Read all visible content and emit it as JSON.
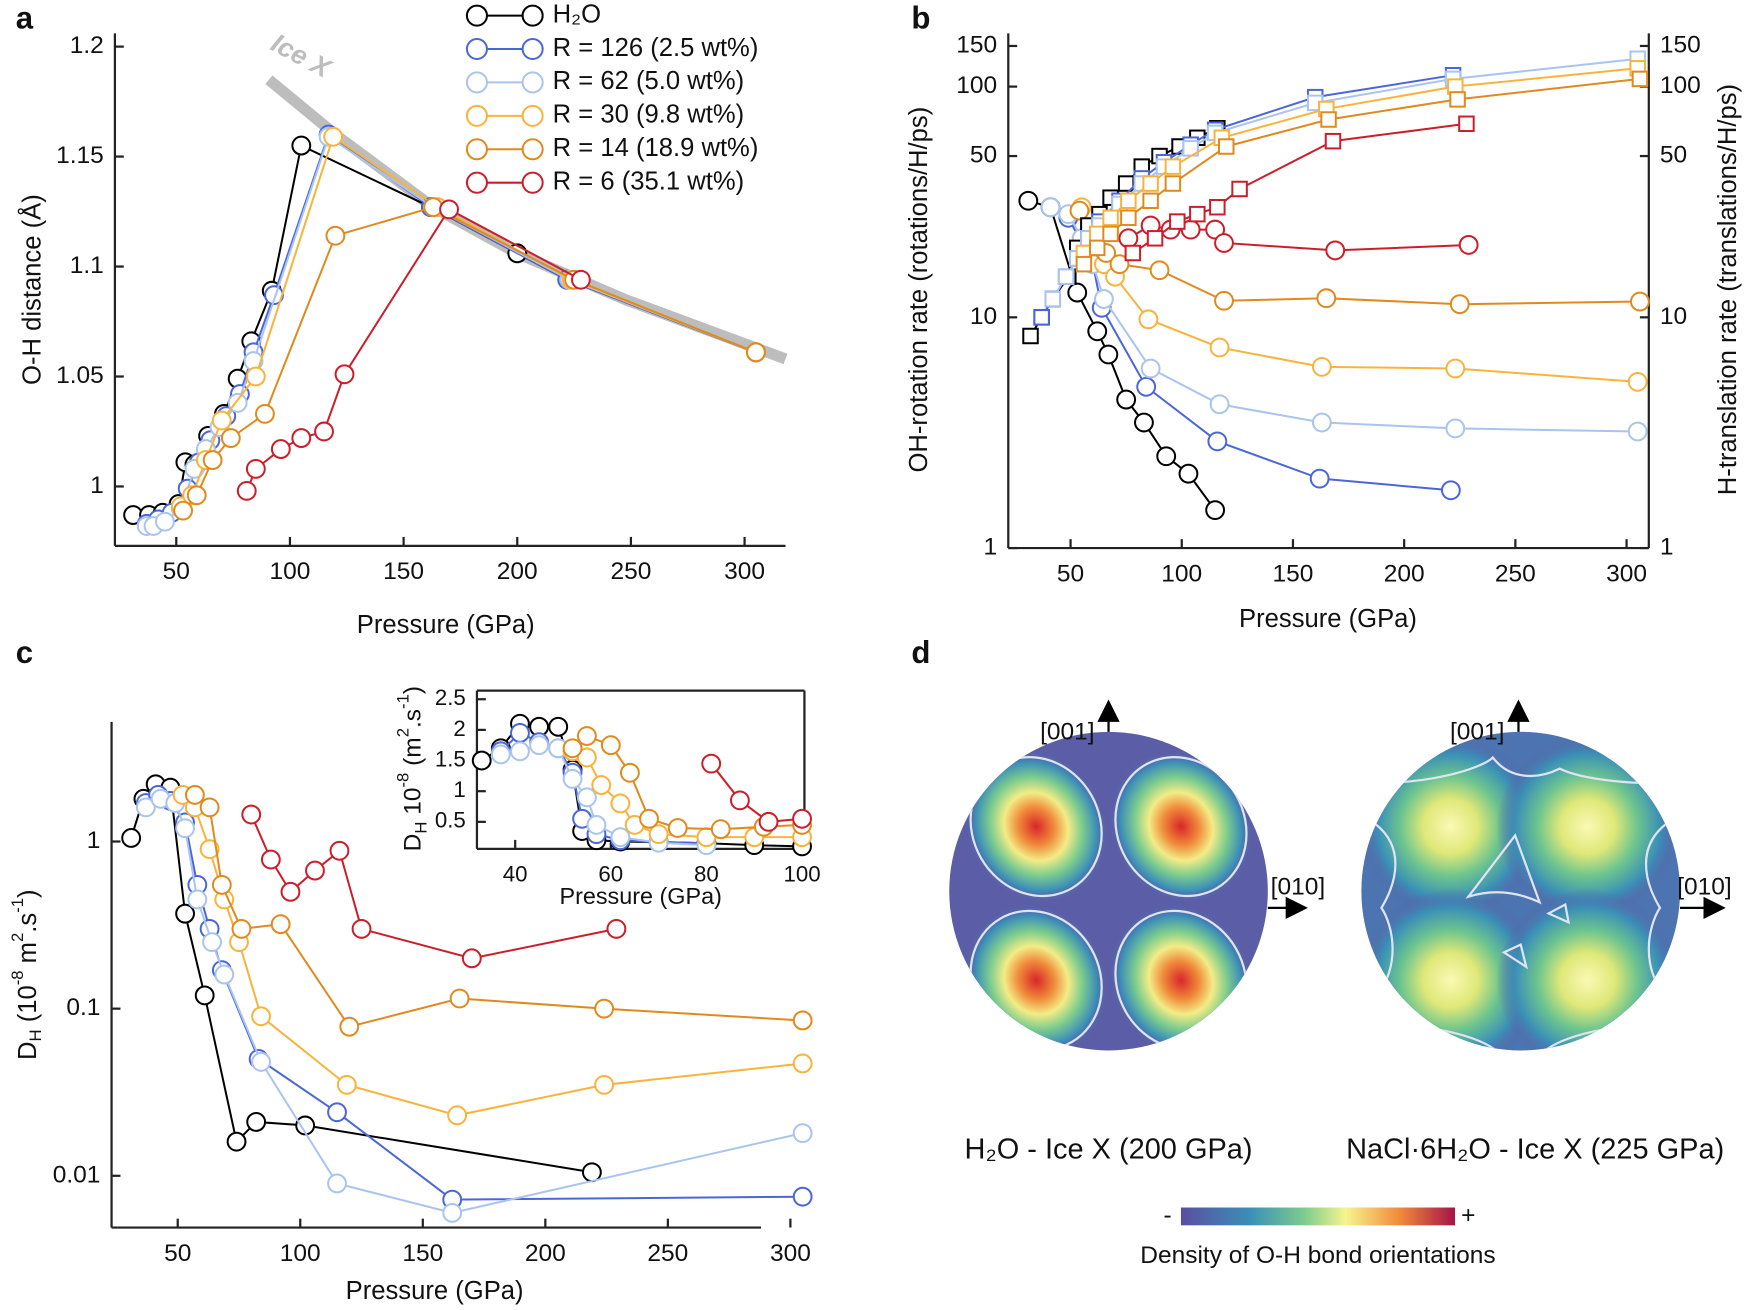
{
  "chart_data": [
    {
      "type": "line",
      "panel": "a",
      "x_label": "Pressure (GPa)",
      "y_label": "O-H distance (Å)",
      "xlim": [
        23,
        318
      ],
      "ylim": [
        0.973,
        1.206
      ],
      "xticks": [
        50,
        100,
        150,
        200,
        250,
        300
      ],
      "yticks": [
        1,
        1.05,
        1.1,
        1.15,
        1.2
      ],
      "legend": "upper center",
      "reference": {
        "label": "Ice X",
        "color": "#bdbdbd",
        "x": [
          90.7,
          120,
          163,
          200,
          247.5,
          318
        ],
        "values": [
          1.185,
          1.16,
          1.127,
          1.106,
          1.085,
          1.058
        ]
      },
      "series": [
        {
          "name": "H₂O",
          "color": "#000000",
          "marker": "circle",
          "x": [
            31,
            38,
            44,
            51,
            54,
            58,
            64,
            71,
            77,
            83,
            92,
            105,
            162,
            200,
            222,
            305
          ],
          "values": [
            0.987,
            0.987,
            0.988,
            0.992,
            1.011,
            1.01,
            1.023,
            1.033,
            1.049,
            1.066,
            1.089,
            1.155,
            1.127,
            1.106,
            1.094,
            1.061
          ]
        },
        {
          "name": "R = 126 (2.5 wt%)",
          "color": "#4a66d9",
          "marker": "circle",
          "x": [
            37,
            42,
            48,
            55,
            60,
            65,
            72,
            78,
            84,
            93,
            117,
            162,
            222,
            305
          ],
          "values": [
            0.983,
            0.985,
            0.988,
            0.999,
            1.011,
            1.021,
            1.032,
            1.042,
            1.061,
            1.087,
            1.16,
            1.127,
            1.094,
            1.061
          ]
        },
        {
          "name": "R = 62 (5.0 wt%)",
          "color": "#a9c4ee",
          "marker": "circle",
          "x": [
            37,
            40,
            45,
            52,
            58,
            63,
            69,
            77,
            84,
            117,
            163,
            223,
            305
          ],
          "values": [
            0.982,
            0.982,
            0.984,
            0.99,
            1.008,
            1.017,
            1.027,
            1.038,
            1.057,
            1.159,
            1.127,
            1.094,
            1.061
          ]
        },
        {
          "name": "R = 30 (9.8 wt%)",
          "color": "#f9b33c",
          "marker": "circle",
          "x": [
            52,
            57,
            63,
            70,
            85,
            119,
            165,
            224,
            305
          ],
          "values": [
            0.991,
            0.996,
            1.012,
            1.03,
            1.05,
            1.159,
            1.127,
            1.094,
            1.061
          ]
        },
        {
          "name": "R = 14 (18.9 wt%)",
          "color": "#e08a1e",
          "marker": "circle",
          "x": [
            53,
            59,
            66,
            74,
            89,
            120,
            163,
            225,
            305
          ],
          "values": [
            0.989,
            0.996,
            1.012,
            1.022,
            1.033,
            1.114,
            1.127,
            1.094,
            1.061
          ]
        },
        {
          "name": "R = 6 (35.1 wt%)",
          "color": "#cc1e2a",
          "marker": "circle",
          "x": [
            81,
            85,
            96,
            105,
            115,
            124,
            170,
            228
          ],
          "values": [
            0.998,
            1.008,
            1.017,
            1.022,
            1.025,
            1.051,
            1.126,
            1.094
          ]
        }
      ]
    },
    {
      "type": "line",
      "panel": "b",
      "x_label": "Pressure (GPa)",
      "y_label": "OH-rotation rate (rotations/H/ps)",
      "y2_label": "H-translation rate (translations/H/ps)",
      "xlim": [
        22,
        310
      ],
      "ylim": [
        1,
        170
      ],
      "y2lim": [
        1,
        170
      ],
      "ylog": true,
      "y2log": true,
      "xticks": [
        50,
        100,
        150,
        200,
        250,
        300
      ],
      "yticks": [
        1,
        10,
        50,
        100,
        150
      ],
      "y2ticks": [
        1,
        10,
        50,
        100,
        150
      ],
      "series": [
        {
          "color": "#000000",
          "marker": "circle",
          "x": [
            31,
            41,
            53,
            62,
            67,
            75,
            83,
            93,
            103,
            115
          ],
          "values": [
            32,
            30,
            12.8,
            8.7,
            6.9,
            4.4,
            3.5,
            2.5,
            2.1,
            1.46
          ]
        },
        {
          "color": "#4a66d9",
          "marker": "circle",
          "x": [
            41,
            49,
            55,
            60,
            64,
            84,
            116,
            162,
            221
          ],
          "values": [
            30,
            27,
            21,
            17,
            11,
            5.0,
            2.9,
            2.0,
            1.78
          ]
        },
        {
          "color": "#a9c4ee",
          "marker": "circle",
          "x": [
            41,
            49,
            55,
            60,
            65,
            86,
            117,
            163,
            223,
            305
          ],
          "values": [
            30,
            28,
            22,
            17,
            12,
            6.0,
            4.2,
            3.5,
            3.3,
            3.2
          ]
        },
        {
          "color": "#f9b33c",
          "marker": "circle",
          "x": [
            55,
            60,
            65,
            70,
            85,
            117,
            163,
            223,
            305
          ],
          "values": [
            30,
            22,
            17,
            15,
            9.8,
            7.4,
            6.1,
            6.0,
            5.25
          ]
        },
        {
          "color": "#e08a1e",
          "marker": "circle",
          "x": [
            54,
            60,
            66,
            72,
            90,
            119,
            165,
            225,
            306
          ],
          "values": [
            29,
            22,
            19,
            17,
            16,
            11.8,
            12.1,
            11.4,
            11.7
          ]
        },
        {
          "color": "#cc1e2a",
          "marker": "circle",
          "x": [
            76,
            86,
            95,
            104,
            115,
            119,
            169,
            229
          ],
          "values": [
            22,
            25,
            24,
            24,
            24,
            21,
            19.5,
            20.6
          ]
        },
        {
          "color": "#000000",
          "marker": "square",
          "axis": "y2",
          "x": [
            32,
            37,
            42,
            49,
            53,
            58,
            63,
            68,
            75,
            82,
            90,
            99,
            107,
            116
          ],
          "values": [
            8.3,
            10,
            12,
            15,
            20,
            25,
            28,
            33,
            38,
            45,
            50,
            55,
            60,
            66
          ]
        },
        {
          "color": "#4a66d9",
          "marker": "square",
          "axis": "y2",
          "x": [
            37,
            42,
            48,
            53,
            58,
            63,
            72,
            82,
            92,
            104,
            115,
            160,
            222
          ],
          "values": [
            10,
            12,
            15,
            18,
            22,
            26,
            32,
            40,
            47,
            56,
            65,
            90,
            112
          ]
        },
        {
          "color": "#a9c4ee",
          "marker": "square",
          "axis": "y2",
          "x": [
            42,
            48,
            53,
            58,
            63,
            72,
            82,
            92,
            104,
            115,
            160,
            222,
            305
          ],
          "values": [
            12,
            15,
            18,
            22,
            25,
            31,
            38,
            45,
            54,
            63,
            85,
            108,
            132
          ]
        },
        {
          "color": "#f9b33c",
          "marker": "square",
          "axis": "y2",
          "x": [
            56,
            62,
            68,
            76,
            86,
            96,
            118,
            165,
            223,
            305
          ],
          "values": [
            19,
            23,
            27,
            32,
            38,
            45,
            60,
            80,
            100,
            120
          ]
        },
        {
          "color": "#e08a1e",
          "marker": "square",
          "axis": "y2",
          "x": [
            56,
            62,
            68,
            76,
            86,
            96,
            120,
            166,
            224,
            306
          ],
          "values": [
            17,
            20,
            23,
            27,
            32,
            38,
            55,
            72,
            88,
            108
          ]
        },
        {
          "color": "#cc1e2a",
          "marker": "square",
          "axis": "y2",
          "x": [
            78,
            88,
            98,
            107,
            116,
            126,
            168,
            228
          ],
          "values": [
            19,
            22,
            26,
            28,
            30,
            36,
            58,
            69
          ]
        }
      ]
    },
    {
      "type": "line",
      "panel": "c",
      "x_label": "Pressure (GPa)",
      "y_label": [
        "D",
        "H",
        " (10",
        "-8",
        " m",
        "2",
        ".s",
        "-1",
        ")"
      ],
      "xlim": [
        23,
        288
      ],
      "ylim": [
        0.0049,
        5.2
      ],
      "ylog": true,
      "xticks": [
        50,
        100,
        150,
        200,
        250,
        300
      ],
      "yticks": [
        0.01,
        0.1,
        1
      ],
      "series": [
        {
          "color": "#000000",
          "marker": "circle",
          "x": [
            31,
            36,
            41,
            47,
            53,
            61,
            74,
            82,
            102,
            219
          ],
          "values": [
            1.05,
            1.8,
            2.2,
            2.1,
            0.37,
            0.12,
            0.016,
            0.021,
            0.02,
            0.0105
          ]
        },
        {
          "color": "#4a66d9",
          "marker": "circle",
          "x": [
            37,
            42,
            47,
            53,
            58,
            63,
            68,
            83,
            115,
            162,
            305
          ],
          "values": [
            1.7,
            1.9,
            1.75,
            1.3,
            0.55,
            0.3,
            0.17,
            0.05,
            0.024,
            0.0072,
            0.0075
          ]
        },
        {
          "color": "#a9c4ee",
          "marker": "circle",
          "x": [
            37,
            43,
            49,
            53,
            58,
            64,
            69,
            84,
            115,
            162,
            305
          ],
          "values": [
            1.6,
            1.8,
            1.7,
            1.2,
            0.45,
            0.25,
            0.16,
            0.048,
            0.009,
            0.006,
            0.018
          ]
        },
        {
          "color": "#f9b33c",
          "marker": "circle",
          "x": [
            52,
            57,
            63,
            69,
            75,
            84,
            119,
            164,
            224,
            305
          ],
          "values": [
            1.9,
            1.6,
            0.9,
            0.45,
            0.25,
            0.09,
            0.035,
            0.023,
            0.035,
            0.047
          ]
        },
        {
          "color": "#e08a1e",
          "marker": "circle",
          "x": [
            57,
            63,
            68,
            76,
            92,
            120,
            165,
            224,
            305
          ],
          "values": [
            1.9,
            1.6,
            0.55,
            0.3,
            0.32,
            0.078,
            0.115,
            0.1,
            0.085
          ]
        },
        {
          "color": "#cc1e2a",
          "marker": "circle",
          "x": [
            80,
            88,
            96,
            106,
            116,
            125,
            170,
            229
          ],
          "values": [
            1.45,
            0.78,
            0.5,
            0.67,
            0.88,
            0.3,
            0.2,
            0.3
          ]
        }
      ]
    },
    {
      "type": "line",
      "x_label": "Pressure (GPa)",
      "y_label": [
        "D",
        "H",
        " 10",
        "-8",
        " (m",
        "2",
        ".s",
        "-1",
        ")"
      ],
      "xlim": [
        32,
        100.5
      ],
      "ylim": [
        0.06,
        2.64
      ],
      "xticks": [
        40,
        60,
        80,
        100
      ],
      "yticks": [
        0.5,
        1,
        1.5,
        2,
        2.5
      ],
      "series": [
        {
          "color": "#000000",
          "marker": "circle",
          "x": [
            33,
            37,
            41,
            45,
            49,
            52,
            54,
            57,
            62,
            70,
            80,
            90,
            100
          ],
          "values": [
            1.5,
            1.7,
            2.1,
            2.05,
            2.05,
            1.35,
            0.35,
            0.2,
            0.18,
            0.17,
            0.15,
            0.12,
            0.1
          ]
        },
        {
          "color": "#4a66d9",
          "marker": "circle",
          "x": [
            37,
            41,
            45,
            49,
            52,
            54,
            57,
            62,
            70,
            80
          ],
          "values": [
            1.65,
            1.95,
            1.8,
            1.7,
            1.3,
            0.55,
            0.3,
            0.2,
            0.17,
            0.15
          ]
        },
        {
          "color": "#a9c4ee",
          "marker": "circle",
          "x": [
            37,
            41,
            45,
            49,
            52,
            55,
            57,
            62,
            70,
            80
          ],
          "values": [
            1.6,
            1.65,
            1.75,
            1.7,
            1.2,
            0.9,
            0.45,
            0.25,
            0.16,
            0.12
          ]
        },
        {
          "color": "#f9b33c",
          "marker": "circle",
          "x": [
            52,
            55,
            58,
            62,
            65,
            70,
            80,
            90,
            100
          ],
          "values": [
            1.65,
            1.55,
            1.1,
            0.8,
            0.45,
            0.3,
            0.25,
            0.25,
            0.25
          ]
        },
        {
          "color": "#e08a1e",
          "marker": "circle",
          "x": [
            52,
            55,
            60,
            64,
            68,
            74,
            83,
            92,
            100
          ],
          "values": [
            1.7,
            1.9,
            1.75,
            1.3,
            0.55,
            0.4,
            0.38,
            0.42,
            0.45
          ]
        },
        {
          "color": "#cc1e2a",
          "marker": "circle",
          "x": [
            81,
            87,
            93,
            100
          ],
          "values": [
            1.45,
            0.85,
            0.5,
            0.55
          ]
        }
      ]
    }
  ],
  "panel_d": {
    "panel": "d",
    "axis_up": "[001]",
    "axis_right": "[010]",
    "left_caption": "H₂O - Ice X (200 GPa)",
    "right_caption": "NaCl·6H₂O - Ice X (225 GPa)",
    "colorbar_min": "-",
    "colorbar_max": "+",
    "colorbar_label": "Density of O-H bond orientations"
  }
}
